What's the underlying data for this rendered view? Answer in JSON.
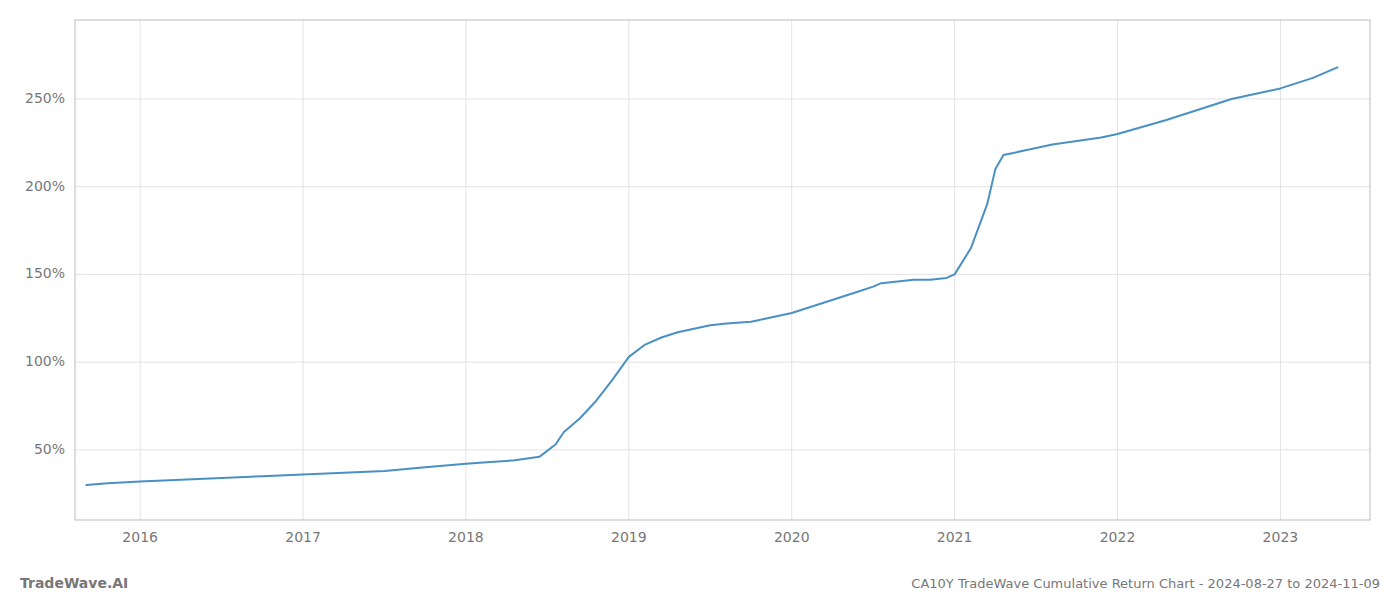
{
  "chart_data": {
    "type": "line",
    "title": "CA10Y TradeWave Cumulative Return Chart - 2024-08-27 to 2024-11-09",
    "annotations": [
      "TradeWave.AI"
    ],
    "color": "#4a90c4",
    "x": [
      2015.67,
      2015.8,
      2016.0,
      2016.25,
      2016.5,
      2016.75,
      2017.0,
      2017.25,
      2017.5,
      2017.75,
      2018.0,
      2018.15,
      2018.3,
      2018.45,
      2018.55,
      2018.6,
      2018.7,
      2018.8,
      2018.9,
      2019.0,
      2019.1,
      2019.2,
      2019.3,
      2019.4,
      2019.5,
      2019.6,
      2019.75,
      2019.85,
      2020.0,
      2020.1,
      2020.2,
      2020.3,
      2020.4,
      2020.5,
      2020.55,
      2020.65,
      2020.75,
      2020.85,
      2020.95,
      2021.0,
      2021.1,
      2021.2,
      2021.25,
      2021.3,
      2021.4,
      2021.5,
      2021.6,
      2021.75,
      2021.9,
      2022.0,
      2022.15,
      2022.3,
      2022.5,
      2022.7,
      2022.9,
      2023.0,
      2023.1,
      2023.2,
      2023.35
    ],
    "values": [
      30,
      31,
      32,
      33,
      34,
      35,
      36,
      37,
      38,
      40,
      42,
      43,
      44,
      46,
      53,
      60,
      68,
      78,
      90,
      103,
      110,
      114,
      117,
      119,
      121,
      122,
      123,
      125,
      128,
      131,
      134,
      137,
      140,
      143,
      145,
      146,
      147,
      147,
      148,
      150,
      165,
      190,
      210,
      218,
      220,
      222,
      224,
      226,
      228,
      230,
      234,
      238,
      244,
      250,
      254,
      256,
      259,
      262,
      268
    ],
    "xlim": [
      2015.6,
      2023.55
    ],
    "xticks": [
      2016,
      2017,
      2018,
      2019,
      2020,
      2021,
      2022,
      2023
    ],
    "ylim": [
      10,
      295
    ],
    "yticks": [
      {
        "value": 50,
        "label": "50%"
      },
      {
        "value": 100,
        "label": "100%"
      },
      {
        "value": 150,
        "label": "150%"
      },
      {
        "value": 200,
        "label": "200%"
      },
      {
        "value": 250,
        "label": "250%"
      }
    ],
    "grid": true
  }
}
